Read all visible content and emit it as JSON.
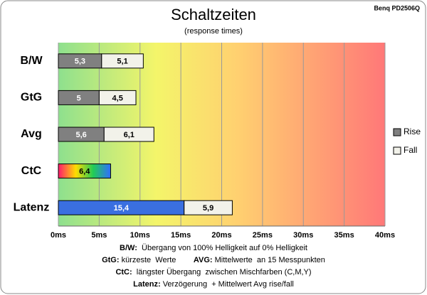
{
  "chart_data": {
    "type": "stacked-barh",
    "title": "Schaltzeiten",
    "subtitle": "(response times)",
    "brand": "Benq PD2506Q",
    "categories": [
      "B/W",
      "GtG",
      "Avg",
      "CtC",
      "Latenz"
    ],
    "series": [
      {
        "name": "Rise",
        "color": "#808080",
        "colors": [
          "#808080",
          "#808080",
          "#808080",
          [
            "#ff1a6e",
            "#ffdd00",
            "#22cc55",
            "#2f6fff"
          ],
          "#3a6fe0"
        ],
        "values": [
          5.3,
          5,
          5.6,
          6.4,
          15.4
        ],
        "value_labels": [
          "5,3",
          "5",
          "5,6",
          "6,4",
          "15,4"
        ]
      },
      {
        "name": "Fall",
        "color": "#f2f2ea",
        "values": [
          5.1,
          4.5,
          6.1,
          null,
          5.9
        ],
        "value_labels": [
          "5,1",
          "4,5",
          "6,1",
          null,
          "5,9"
        ]
      }
    ],
    "xlim": [
      0,
      40
    ],
    "xticks": [
      {
        "value": 0,
        "label": "0ms"
      },
      {
        "value": 5,
        "label": "5ms"
      },
      {
        "value": 10,
        "label": "10ms"
      },
      {
        "value": 15,
        "label": "15ms"
      },
      {
        "value": 20,
        "label": "20ms"
      },
      {
        "value": 25,
        "label": "25ms"
      },
      {
        "value": 30,
        "label": "30ms"
      },
      {
        "value": 35,
        "label": "35ms"
      },
      {
        "value": 40,
        "label": "40ms"
      }
    ],
    "grid": true,
    "legend": "right",
    "notes": [
      [
        [
          "B/W:",
          "  Übergang von 100% Helligkeit auf 0% Helligkeit"
        ]
      ],
      [
        [
          "GtG:",
          " kürzeste  Werte        "
        ],
        [
          "AVG:",
          " Mittelwerte  an 15 Messpunkten"
        ]
      ],
      [
        [
          "CtC:",
          "  längster Übergang  zwischen Mischfarben (C,M,Y)"
        ]
      ],
      [
        [
          "Latenz:",
          " Verzögerung  + Mittelwert Avg rise/fall"
        ]
      ]
    ]
  }
}
